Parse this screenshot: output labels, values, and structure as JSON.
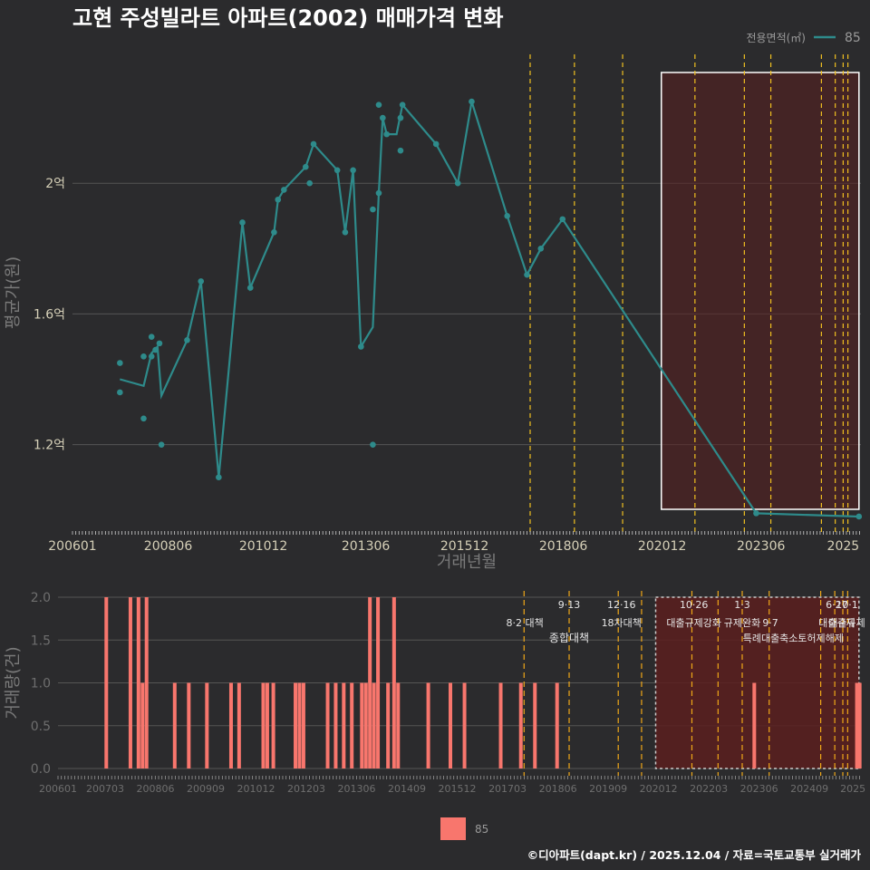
{
  "title": "고현 주성빌라트 아파트(2002) 매매가격 변화",
  "footer": "©디아파트(dapt.kr) / 2025.12.04 / 자료=국토교통부 실거래가",
  "colors": {
    "line": "#2e8b8b",
    "bar": "#f8766d",
    "policy": "#f0c020",
    "grid": "#555555",
    "shade": "#5a1f1f"
  },
  "legend_top": {
    "title": "전용면적(㎡)",
    "label": "85"
  },
  "legend_bottom": {
    "label": "85"
  },
  "chart_data": [
    {
      "type": "line",
      "title": "고현 주성빌라트 아파트(2002) 매매가격 변화",
      "xlabel": "거래년월",
      "ylabel": "평균가(원)",
      "xlim": [
        2006.0,
        2025.95
      ],
      "ylim": [
        0.93,
        2.4
      ],
      "x_ticks": [
        {
          "v": 2006.0,
          "label": "200601"
        },
        {
          "v": 2008.42,
          "label": "200806"
        },
        {
          "v": 2010.83,
          "label": "201012"
        },
        {
          "v": 2013.42,
          "label": "201306"
        },
        {
          "v": 2015.92,
          "label": "201512"
        },
        {
          "v": 2018.42,
          "label": "201806"
        },
        {
          "v": 2020.92,
          "label": "202012"
        },
        {
          "v": 2023.42,
          "label": "202306"
        },
        {
          "v": 2025.5,
          "label": "2025"
        }
      ],
      "y_ticks": [
        {
          "v": 1.2,
          "label": "1.2억"
        },
        {
          "v": 1.6,
          "label": "1.6억"
        },
        {
          "v": 2.0,
          "label": "2억"
        }
      ],
      "unit": "억원",
      "series": [
        {
          "name": "85",
          "line": [
            [
              2007.2,
              1.4
            ],
            [
              2007.8,
              1.38
            ],
            [
              2008.0,
              1.48
            ],
            [
              2008.15,
              1.5
            ],
            [
              2008.25,
              1.35
            ],
            [
              2008.9,
              1.52
            ],
            [
              2009.25,
              1.7
            ],
            [
              2009.7,
              1.1
            ],
            [
              2010.3,
              1.88
            ],
            [
              2010.5,
              1.68
            ],
            [
              2011.1,
              1.85
            ],
            [
              2011.2,
              1.95
            ],
            [
              2011.35,
              1.98
            ],
            [
              2011.9,
              2.05
            ],
            [
              2012.1,
              2.12
            ],
            [
              2012.7,
              2.04
            ],
            [
              2012.9,
              1.85
            ],
            [
              2013.1,
              2.04
            ],
            [
              2013.3,
              1.5
            ],
            [
              2013.6,
              1.56
            ],
            [
              2013.75,
              1.97
            ],
            [
              2013.85,
              2.2
            ],
            [
              2013.95,
              2.15
            ],
            [
              2014.2,
              2.15
            ],
            [
              2014.35,
              2.24
            ],
            [
              2015.2,
              2.12
            ],
            [
              2015.75,
              2.0
            ],
            [
              2016.1,
              2.25
            ],
            [
              2017.0,
              1.9
            ],
            [
              2017.5,
              1.72
            ],
            [
              2017.85,
              1.8
            ],
            [
              2018.4,
              1.89
            ],
            [
              2023.3,
              0.99
            ],
            [
              2025.9,
              0.98
            ]
          ],
          "points": [
            [
              2007.2,
              1.45
            ],
            [
              2007.2,
              1.36
            ],
            [
              2007.8,
              1.47
            ],
            [
              2007.8,
              1.28
            ],
            [
              2008.0,
              1.53
            ],
            [
              2008.0,
              1.47
            ],
            [
              2008.1,
              1.49
            ],
            [
              2008.2,
              1.51
            ],
            [
              2008.25,
              1.2
            ],
            [
              2008.9,
              1.52
            ],
            [
              2009.25,
              1.7
            ],
            [
              2009.7,
              1.1
            ],
            [
              2010.3,
              1.88
            ],
            [
              2010.5,
              1.68
            ],
            [
              2011.1,
              1.85
            ],
            [
              2011.2,
              1.95
            ],
            [
              2011.35,
              1.98
            ],
            [
              2011.9,
              2.05
            ],
            [
              2012.0,
              2.0
            ],
            [
              2012.1,
              2.12
            ],
            [
              2012.7,
              2.04
            ],
            [
              2012.9,
              1.85
            ],
            [
              2013.1,
              2.04
            ],
            [
              2013.3,
              1.5
            ],
            [
              2013.6,
              1.92
            ],
            [
              2013.6,
              1.2
            ],
            [
              2013.75,
              1.97
            ],
            [
              2013.75,
              2.24
            ],
            [
              2013.85,
              2.2
            ],
            [
              2013.95,
              2.15
            ],
            [
              2014.3,
              2.1
            ],
            [
              2014.3,
              2.2
            ],
            [
              2014.35,
              2.24
            ],
            [
              2015.2,
              2.12
            ],
            [
              2015.75,
              2.0
            ],
            [
              2016.1,
              2.25
            ],
            [
              2017.0,
              1.9
            ],
            [
              2017.5,
              1.72
            ],
            [
              2017.85,
              1.8
            ],
            [
              2018.4,
              1.89
            ],
            [
              2023.3,
              0.99
            ],
            [
              2025.9,
              0.98
            ]
          ]
        }
      ],
      "shaded_range": [
        2020.9,
        2025.9
      ],
      "policy_lines": [
        2017.58,
        2018.7,
        2019.92,
        2021.75,
        2023.0,
        2023.67,
        2024.95,
        2025.3,
        2025.5,
        2025.62
      ]
    },
    {
      "type": "bar",
      "xlabel": "",
      "ylabel": "거래량(건)",
      "xlim": [
        2006.0,
        2025.95
      ],
      "ylim": [
        0,
        2.0
      ],
      "y_ticks": [
        {
          "v": 0.0,
          "label": "0.0"
        },
        {
          "v": 0.5,
          "label": "0.5"
        },
        {
          "v": 1.0,
          "label": "1.0"
        },
        {
          "v": 1.5,
          "label": "1.5"
        },
        {
          "v": 2.0,
          "label": "2.0"
        }
      ],
      "x_ticks": [
        {
          "v": 2006.0,
          "label": "200601"
        },
        {
          "v": 2007.17,
          "label": "200703"
        },
        {
          "v": 2008.42,
          "label": "200806"
        },
        {
          "v": 2009.67,
          "label": "200909"
        },
        {
          "v": 2010.92,
          "label": "201012"
        },
        {
          "v": 2012.17,
          "label": "201203"
        },
        {
          "v": 2013.42,
          "label": "201306"
        },
        {
          "v": 2014.67,
          "label": "201409"
        },
        {
          "v": 2015.92,
          "label": "201512"
        },
        {
          "v": 2017.17,
          "label": "201703"
        },
        {
          "v": 2018.42,
          "label": "201806"
        },
        {
          "v": 2019.67,
          "label": "201909"
        },
        {
          "v": 2020.92,
          "label": "202012"
        },
        {
          "v": 2022.17,
          "label": "202203"
        },
        {
          "v": 2023.42,
          "label": "202306"
        },
        {
          "v": 2024.67,
          "label": "202409"
        },
        {
          "v": 2025.75,
          "label": "2025"
        }
      ],
      "series": [
        {
          "name": "85",
          "bars": [
            [
              2007.2,
              2
            ],
            [
              2007.8,
              2
            ],
            [
              2008.0,
              2
            ],
            [
              2008.1,
              1
            ],
            [
              2008.2,
              2
            ],
            [
              2008.9,
              1
            ],
            [
              2009.25,
              1
            ],
            [
              2009.7,
              1
            ],
            [
              2010.3,
              1
            ],
            [
              2010.5,
              1
            ],
            [
              2011.1,
              1
            ],
            [
              2011.2,
              1
            ],
            [
              2011.35,
              1
            ],
            [
              2011.9,
              1
            ],
            [
              2012.0,
              1
            ],
            [
              2012.1,
              1
            ],
            [
              2012.7,
              1
            ],
            [
              2012.9,
              1
            ],
            [
              2013.1,
              1
            ],
            [
              2013.3,
              1
            ],
            [
              2013.55,
              1
            ],
            [
              2013.65,
              1
            ],
            [
              2013.75,
              2
            ],
            [
              2013.85,
              1
            ],
            [
              2013.95,
              2
            ],
            [
              2014.2,
              1
            ],
            [
              2014.35,
              2
            ],
            [
              2014.45,
              1
            ],
            [
              2015.2,
              1
            ],
            [
              2015.75,
              1
            ],
            [
              2016.1,
              1
            ],
            [
              2017.0,
              1
            ],
            [
              2017.5,
              1
            ],
            [
              2017.85,
              1
            ],
            [
              2018.4,
              1
            ],
            [
              2023.3,
              1
            ],
            [
              2025.85,
              1
            ],
            [
              2025.92,
              1
            ]
          ]
        }
      ],
      "shaded_range": [
        2020.85,
        2025.9
      ],
      "policy_lines": [
        2017.58,
        2018.7,
        2019.92,
        2020.5,
        2021.75,
        2022.4,
        2023.0,
        2023.67,
        2024.95,
        2025.3,
        2025.5,
        2025.62
      ],
      "annotations": [
        {
          "x": 2017.6,
          "row": 1,
          "text": "8·2 대책",
          "anchor": "middle"
        },
        {
          "x": 2018.7,
          "row": 0,
          "text": "9·13",
          "anchor": "middle"
        },
        {
          "x": 2018.7,
          "row": 2,
          "text": "종합대책",
          "anchor": "middle"
        },
        {
          "x": 2020.0,
          "row": 0,
          "text": "12·16",
          "anchor": "middle"
        },
        {
          "x": 2020.0,
          "row": 1,
          "text": "18차대책",
          "anchor": "middle"
        },
        {
          "x": 2021.8,
          "row": 0,
          "text": "10·26",
          "anchor": "middle"
        },
        {
          "x": 2021.8,
          "row": 1,
          "text": "대출규제강화",
          "anchor": "middle"
        },
        {
          "x": 2023.0,
          "row": 0,
          "text": "1·3",
          "anchor": "middle"
        },
        {
          "x": 2023.0,
          "row": 1,
          "text": "규제완화",
          "anchor": "middle"
        },
        {
          "x": 2023.7,
          "row": 1,
          "text": "9·7",
          "anchor": "middle"
        },
        {
          "x": 2023.7,
          "row": 2,
          "text": "특례대출축소",
          "anchor": "middle"
        },
        {
          "x": 2024.95,
          "row": 2,
          "text": "토허제해제",
          "anchor": "middle"
        },
        {
          "x": 2025.35,
          "row": 0,
          "text": "6·27",
          "anchor": "middle"
        },
        {
          "x": 2025.35,
          "row": 1,
          "text": "대출규제",
          "anchor": "middle"
        },
        {
          "x": 2025.6,
          "row": 0,
          "text": "10·1",
          "anchor": "middle"
        },
        {
          "x": 2025.6,
          "row": 1,
          "text": "대출규제",
          "anchor": "middle"
        }
      ]
    }
  ]
}
